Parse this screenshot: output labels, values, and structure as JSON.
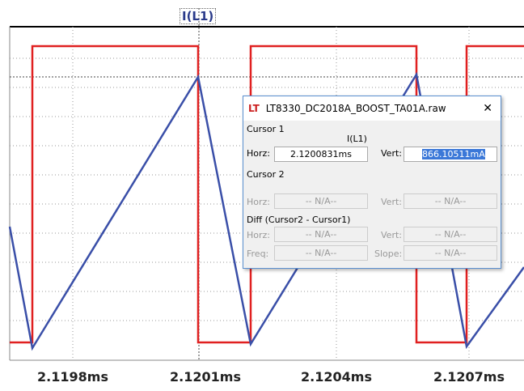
{
  "trace_label": "I(L1)",
  "x_ticks": [
    "2.1198ms",
    "2.1201ms",
    "2.1204ms",
    "2.1207ms"
  ],
  "dialog": {
    "title": "LT8330_DC2018A_BOOST_TA01A.raw",
    "close": "✕",
    "cursor1": {
      "heading": "Cursor 1",
      "trace": "I(L1)",
      "horz_label": "Horz:",
      "horz_value": "2.1200831ms",
      "vert_label": "Vert:",
      "vert_value": "866.10511mA"
    },
    "cursor2": {
      "heading": "Cursor 2",
      "horz_label": "Horz:",
      "horz_value": "-- N/A--",
      "vert_label": "Vert:",
      "vert_value": "-- N/A--"
    },
    "diff": {
      "heading": "Diff (Cursor2 - Cursor1)",
      "horz_label": "Horz:",
      "horz_value": "-- N/A--",
      "vert_label": "Vert:",
      "vert_value": "-- N/A--",
      "freq_label": "Freq:",
      "freq_value": "-- N/A--",
      "slope_label": "Slope:",
      "slope_value": "-- N/A--"
    }
  }
}
